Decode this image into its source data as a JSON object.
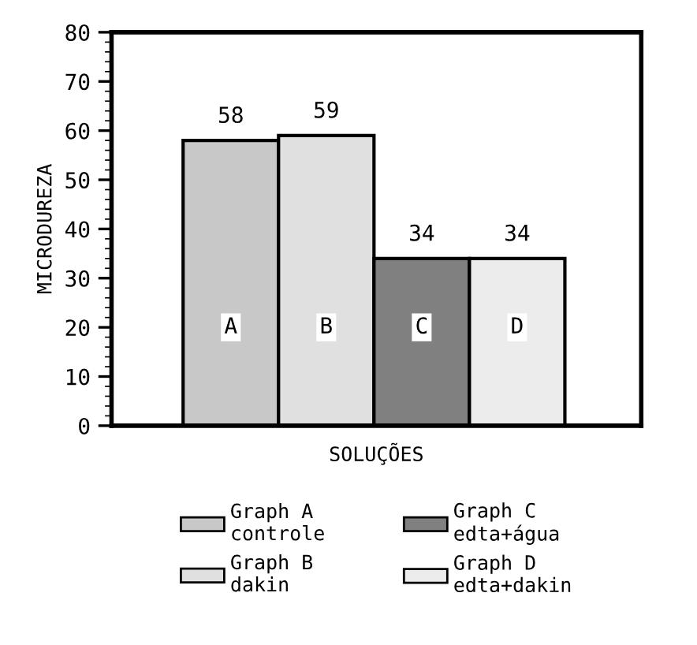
{
  "chart_data": {
    "type": "bar",
    "xlabel": "SOLUÇÕES",
    "ylabel": "MICRODUREZA",
    "categories": [
      "A",
      "B",
      "C",
      "D"
    ],
    "series": [
      {
        "name": "Graph A\ncontrole",
        "color": "#c8c8c8",
        "values": [
          58,
          null,
          null,
          null
        ]
      },
      {
        "name": "Graph B\ndakin",
        "color": "#e0e0e0",
        "values": [
          null,
          59,
          null,
          null
        ]
      },
      {
        "name": "Graph C\nedta+água",
        "color": "#808080",
        "values": [
          null,
          null,
          34,
          null
        ]
      },
      {
        "name": "Graph D\nedta+dakin",
        "color": "#ececec",
        "values": [
          null,
          null,
          null,
          34
        ]
      }
    ],
    "ylim": [
      0,
      80
    ],
    "yticks": [
      0,
      10,
      20,
      30,
      40,
      50,
      60,
      70,
      80
    ],
    "data_labels": true,
    "grid": false,
    "legend": "bottom"
  }
}
